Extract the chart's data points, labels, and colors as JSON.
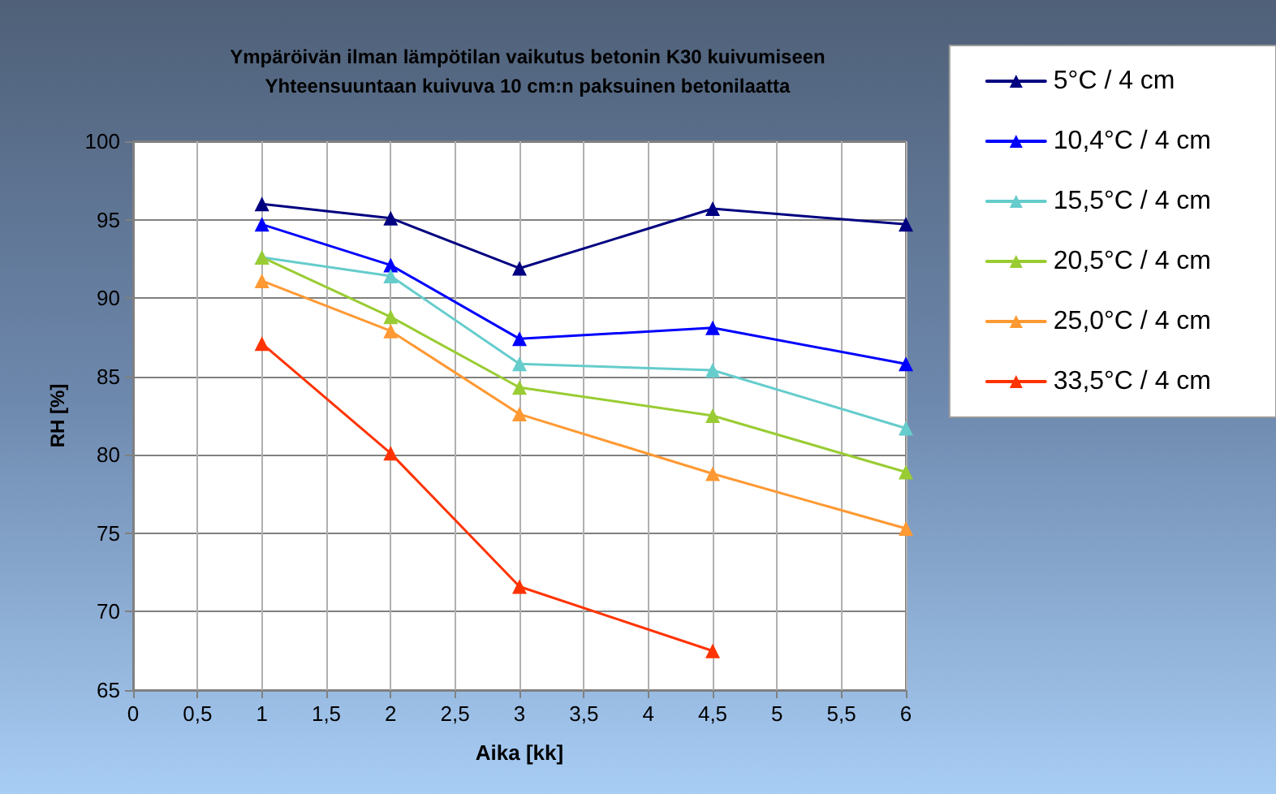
{
  "chart_data": {
    "type": "line",
    "title": "Ympäröivän ilman lämpötilan vaikutus betonin K30 kuivumiseen",
    "subtitle": "Yhteensuuntaan kuivuva 10 cm:n paksuinen betonilaatta",
    "xlabel": "Aika [kk]",
    "ylabel": "RH [%]",
    "x": [
      1,
      2,
      3,
      4.5,
      6
    ],
    "series": [
      {
        "name": "5°C / 4 cm",
        "color": "#000080",
        "values": [
          96,
          95.1,
          91.9,
          95.7,
          94.7
        ]
      },
      {
        "name": "10,4°C / 4 cm",
        "color": "#0000ff",
        "values": [
          94.7,
          92.1,
          87.4,
          88.1,
          85.8
        ]
      },
      {
        "name": "15,5°C / 4 cm",
        "color": "#66cccc",
        "values": [
          92.6,
          91.4,
          85.8,
          85.4,
          81.7
        ]
      },
      {
        "name": "20,5°C / 4 cm",
        "color": "#99cc33",
        "values": [
          92.6,
          88.8,
          84.3,
          82.5,
          78.9
        ]
      },
      {
        "name": "25,0°C / 4 cm",
        "color": "#ff9933",
        "values": [
          91.1,
          87.9,
          82.6,
          78.8,
          75.3
        ]
      },
      {
        "name": "33,5°C / 4 cm",
        "color": "#ff3300",
        "values": [
          87.1,
          80.1,
          71.6,
          67.5,
          null
        ]
      }
    ],
    "xlim": [
      0,
      6
    ],
    "xticks": [
      0,
      {
        "value": 0.5,
        "label": "0,5"
      },
      1,
      {
        "value": 1.5,
        "label": "1,5"
      },
      2,
      {
        "value": 2.5,
        "label": "2,5"
      },
      3,
      {
        "value": 3.5,
        "label": "3,5"
      },
      4,
      {
        "value": 4.5,
        "label": "4,5"
      },
      5,
      {
        "value": 5.5,
        "label": "5,5"
      },
      6
    ],
    "ylim": [
      65,
      100
    ],
    "yticks": [
      65,
      70,
      75,
      80,
      85,
      90,
      95,
      100
    ],
    "grid": true,
    "legend": "top right",
    "marker": "triangle",
    "line_style": "solid"
  }
}
